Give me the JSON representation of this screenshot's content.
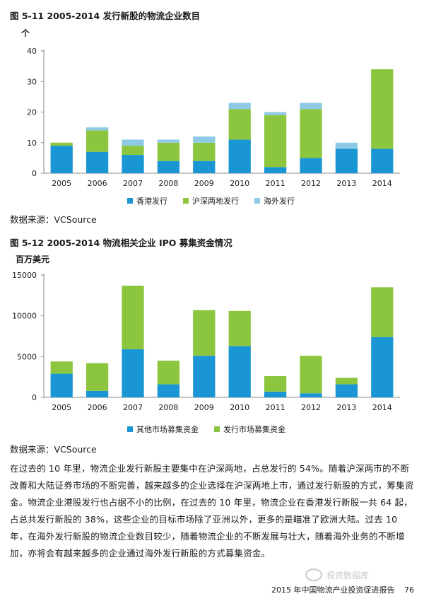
{
  "figure1": {
    "title": "图 5-11 2005-2014 发行新股的物流企业数目",
    "unit": "个",
    "source": "数据来源：VCSource",
    "legend": [
      {
        "name": "香港发行",
        "color": "#1a96d4"
      },
      {
        "name": "沪深两地发行",
        "color": "#8cc63e"
      },
      {
        "name": "海外发行",
        "color": "#8ecae6"
      }
    ]
  },
  "figure2": {
    "title": "图 5-12 2005-2014 物流相关企业 IPO 募集资金情况",
    "unit": "百万美元",
    "source": "数据来源：VCSource",
    "legend": [
      {
        "name": "其他市场募集资金",
        "color": "#1a96d4"
      },
      {
        "name": "发行市场募集资金",
        "color": "#8cc63e"
      }
    ]
  },
  "chart_data": [
    {
      "type": "bar",
      "stacked": true,
      "title": "图 5-11 2005-2014 发行新股的物流企业数目",
      "ylabel": "个",
      "categories": [
        "2005",
        "2006",
        "2007",
        "2008",
        "2009",
        "2010",
        "2011",
        "2012",
        "2013",
        "2014"
      ],
      "ylim": [
        0,
        40
      ],
      "yticks": [
        0,
        10,
        20,
        30,
        40
      ],
      "grid": false,
      "legend_position": "bottom",
      "series": [
        {
          "name": "香港发行",
          "color": "#1a96d4",
          "values": [
            9,
            7,
            6,
            4,
            4,
            11,
            2,
            5,
            8,
            8
          ]
        },
        {
          "name": "沪深两地发行",
          "color": "#8cc63e",
          "values": [
            1,
            7,
            3,
            6,
            6,
            10,
            17,
            16,
            0,
            26
          ]
        },
        {
          "name": "海外发行",
          "color": "#8ecae6",
          "values": [
            0,
            1,
            2,
            1,
            2,
            2,
            1,
            2,
            2,
            0
          ]
        }
      ]
    },
    {
      "type": "bar",
      "stacked": true,
      "title": "图 5-12 2005-2014 物流相关企业 IPO 募集资金情况",
      "ylabel": "百万美元",
      "categories": [
        "2005",
        "2006",
        "2007",
        "2008",
        "2009",
        "2010",
        "2011",
        "2012",
        "2013",
        "2014"
      ],
      "ylim": [
        0,
        15000
      ],
      "yticks": [
        0,
        5000,
        10000,
        15000
      ],
      "grid": false,
      "legend_position": "bottom",
      "series": [
        {
          "name": "其他市场募集资金",
          "color": "#1a96d4",
          "values": [
            2900,
            800,
            5900,
            1600,
            5100,
            6300,
            700,
            500,
            1600,
            7400
          ]
        },
        {
          "name": "发行市场募集资金",
          "color": "#8cc63e",
          "values": [
            1500,
            3400,
            7800,
            2900,
            5600,
            4300,
            1900,
            4600,
            800,
            6100
          ]
        }
      ]
    }
  ],
  "body": {
    "paragraph": "在过去的 10 年里，物流企业发行新股主要集中在沪深两地，占总发行的 54%。随着沪深两市的不断改善和大陆证券市场的不断完善，越来越多的企业选择在沪深两地上市，通过发行新股的方式，筹集资金。物流企业港股发行也占据不小的比例，在过去的 10 年里，物流企业在香港发行新股一共 64 起，占总共发行新股的 38%，这些企业的目标市场除了亚洲以外，更多的是瞄准了欧洲大陆。过去 10 年，在海外发行新股的物流企业数目较少，随着物流企业的不断发展与壮大，随着海外业务的不断增加，亦将会有越来越多的企业通过海外发行新股的方式募集资金。"
  },
  "watermark": "投资数据库",
  "footer": {
    "text": "2015 年中国物流产业投资促进报告",
    "page": "76"
  }
}
